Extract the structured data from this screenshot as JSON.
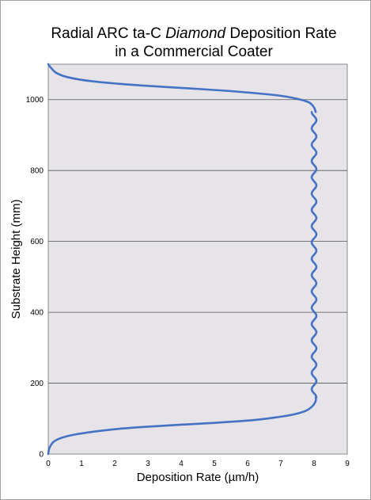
{
  "chart_data": {
    "type": "line",
    "title_parts": [
      "Radial ARC ta-C ",
      "Diamond",
      " Deposition Rate"
    ],
    "title_line2": "in a Commercial Coater",
    "xlabel": "Deposition Rate (µm/h)",
    "ylabel": "Substrate Height (mm)",
    "xlim": [
      0,
      9
    ],
    "ylim": [
      0,
      1100
    ],
    "x_ticks": [
      "0",
      "1",
      "2",
      "3",
      "4",
      "5",
      "6",
      "7",
      "8",
      "9"
    ],
    "y_ticks": [
      "0",
      "200",
      "400",
      "600",
      "800",
      "1000"
    ],
    "grid": "horizontal",
    "plot_background": "#e6e4e8",
    "series": [
      {
        "color": "#4472c4",
        "points": [
          [
            0.0,
            0
          ],
          [
            0.05,
            20
          ],
          [
            0.25,
            40
          ],
          [
            0.8,
            55
          ],
          [
            2.0,
            70
          ],
          [
            3.5,
            80
          ],
          [
            5.0,
            88
          ],
          [
            6.2,
            96
          ],
          [
            6.9,
            104
          ],
          [
            7.4,
            112
          ],
          [
            7.75,
            122
          ],
          [
            7.95,
            135
          ],
          [
            8.05,
            150
          ],
          [
            8.05,
            160
          ]
        ],
        "oscillation": {
          "from_y": 160,
          "to_y": 965,
          "center_x": 8.0,
          "amplitude": 0.07,
          "period_mm": 46
        }
      },
      {
        "color": "#4472c4",
        "points": [
          [
            8.05,
            965
          ],
          [
            8.0,
            978
          ],
          [
            7.85,
            992
          ],
          [
            7.5,
            1002
          ],
          [
            6.9,
            1012
          ],
          [
            5.5,
            1024
          ],
          [
            4.0,
            1033
          ],
          [
            2.5,
            1042
          ],
          [
            1.3,
            1052
          ],
          [
            0.6,
            1063
          ],
          [
            0.25,
            1075
          ],
          [
            0.08,
            1090
          ],
          [
            0.0,
            1100
          ]
        ]
      }
    ]
  }
}
